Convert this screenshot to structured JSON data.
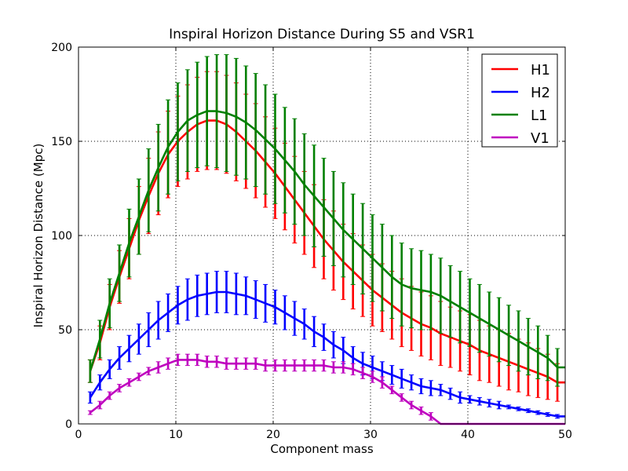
{
  "chart_data": {
    "type": "line",
    "title": "Inspiral Horizon Distance During S5 and VSR1",
    "xlabel": "Component mass",
    "ylabel": "Inspiral Horizon Distance (Mpc)",
    "xlim": [
      0,
      50
    ],
    "ylim": [
      0,
      200
    ],
    "x_ticks": [
      "0",
      "10",
      "20",
      "30",
      "40",
      "50"
    ],
    "y_ticks": [
      "0",
      "50",
      "100",
      "150",
      "200"
    ],
    "grid": true,
    "legend_position": "top-right",
    "x": [
      1.2,
      2.2,
      3.2,
      4.2,
      5.2,
      6.2,
      7.2,
      8.2,
      9.2,
      10.2,
      11.2,
      12.2,
      13.2,
      14.2,
      15.2,
      16.2,
      17.2,
      18.2,
      19.2,
      20.2,
      21.2,
      22.2,
      23.2,
      24.2,
      25.2,
      26.2,
      27.2,
      28.2,
      29.2,
      30.2,
      31.2,
      32.2,
      33.2,
      34.2,
      35.2,
      36.2,
      37.2,
      38.2,
      39.2,
      40.2,
      41.2,
      42.2,
      43.2,
      44.2,
      45.2,
      46.2,
      47.2,
      48.2,
      49.2
    ],
    "series": [
      {
        "name": "H1",
        "color": "#ff0000",
        "values": [
          28,
          43,
          62,
          78,
          93,
          108,
          121,
          133,
          143,
          150,
          155,
          159,
          161,
          161,
          159,
          155,
          150,
          145,
          139,
          133,
          126,
          119,
          112,
          105,
          98,
          92,
          86,
          81,
          76,
          71,
          67,
          63,
          59,
          56,
          53,
          51,
          48,
          46,
          44,
          42,
          39,
          37,
          35,
          33,
          31,
          29,
          27,
          25,
          22
        ],
        "errors": [
          6,
          9,
          12,
          14,
          16,
          18,
          20,
          22,
          23,
          24,
          25,
          25,
          26,
          26,
          26,
          26,
          25,
          25,
          24,
          24,
          23,
          23,
          22,
          22,
          21,
          21,
          20,
          20,
          19,
          19,
          18,
          18,
          18,
          17,
          17,
          17,
          17,
          16,
          16,
          16,
          16,
          15,
          15,
          15,
          14,
          14,
          13,
          12,
          10
        ]
      },
      {
        "name": "H2",
        "color": "#0000ff",
        "values": [
          14,
          22,
          29,
          35,
          40,
          45,
          50,
          55,
          59,
          63,
          66,
          68,
          69,
          70,
          70,
          69,
          68,
          66,
          64,
          62,
          59,
          56,
          53,
          49,
          46,
          42,
          39,
          35,
          32,
          30,
          28,
          26,
          24,
          22,
          20,
          19,
          18,
          16,
          14,
          13,
          12,
          11,
          10,
          9,
          8,
          7,
          6,
          5,
          4
        ],
        "errors": [
          3,
          4,
          5,
          6,
          7,
          8,
          9,
          10,
          10,
          10,
          11,
          11,
          11,
          11,
          11,
          11,
          10,
          10,
          10,
          9,
          9,
          9,
          8,
          8,
          7,
          7,
          7,
          6,
          6,
          6,
          5,
          5,
          5,
          4,
          4,
          4,
          3,
          3,
          3,
          2,
          2,
          2,
          2,
          1,
          1,
          1,
          1,
          1,
          1
        ]
      },
      {
        "name": "L1",
        "color": "#008000",
        "values": [
          28,
          45,
          64,
          80,
          96,
          110,
          124,
          136,
          147,
          155,
          161,
          164,
          166,
          166,
          165,
          163,
          160,
          156,
          151,
          146,
          140,
          134,
          127,
          121,
          115,
          109,
          103,
          98,
          93,
          88,
          83,
          78,
          74,
          72,
          71,
          70,
          68,
          65,
          62,
          59,
          56,
          53,
          50,
          47,
          44,
          41,
          38,
          35,
          30
        ],
        "errors": [
          6,
          10,
          13,
          15,
          18,
          20,
          22,
          23,
          25,
          26,
          27,
          28,
          29,
          30,
          31,
          31,
          30,
          30,
          29,
          29,
          28,
          28,
          27,
          27,
          26,
          25,
          25,
          24,
          24,
          23,
          23,
          22,
          22,
          21,
          21,
          20,
          20,
          19,
          19,
          18,
          18,
          17,
          17,
          16,
          16,
          15,
          14,
          12,
          10
        ]
      },
      {
        "name": "V1",
        "color": "#bf00bf",
        "values": [
          6,
          10,
          15,
          19,
          22,
          25,
          28,
          30,
          32,
          34,
          34,
          34,
          33,
          33,
          32,
          32,
          32,
          32,
          31,
          31,
          31,
          31,
          31,
          31,
          31,
          30,
          30,
          29,
          27,
          25,
          22,
          18,
          14,
          10,
          7,
          4,
          0,
          0,
          0,
          0,
          0,
          0,
          0,
          0,
          0,
          0,
          0,
          0,
          0
        ],
        "errors": [
          1,
          2,
          2,
          2,
          2,
          2,
          2,
          3,
          3,
          3,
          3,
          3,
          3,
          3,
          3,
          3,
          3,
          3,
          3,
          3,
          3,
          3,
          3,
          3,
          3,
          3,
          3,
          3,
          3,
          3,
          3,
          2,
          2,
          2,
          2,
          2,
          0,
          0,
          0,
          0,
          0,
          0,
          0,
          0,
          0,
          0,
          0,
          0,
          0
        ]
      }
    ]
  }
}
